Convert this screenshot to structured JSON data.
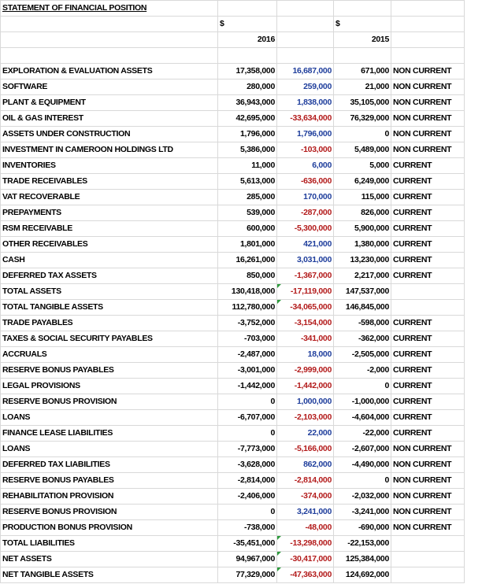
{
  "title": "STATEMENT OF FINANCIAL POSITION",
  "currency_symbol_2016": "$",
  "currency_symbol_2015": "$",
  "year_2016": "2016",
  "year_2015": "2015",
  "rows": [
    {
      "label": "EXPLORATION & EVALUATION ASSETS",
      "v2016": "17,358,000",
      "diff": "16,687,000",
      "diff_sign": "pos",
      "v2015": "671,000",
      "class": "NON CURRENT"
    },
    {
      "label": "SOFTWARE",
      "v2016": "280,000",
      "diff": "259,000",
      "diff_sign": "pos",
      "v2015": "21,000",
      "class": "NON CURRENT"
    },
    {
      "label": "PLANT & EQUIPMENT",
      "v2016": "36,943,000",
      "diff": "1,838,000",
      "diff_sign": "pos",
      "v2015": "35,105,000",
      "class": "NON CURRENT"
    },
    {
      "label": "OIL & GAS INTEREST",
      "v2016": "42,695,000",
      "diff": "-33,634,000",
      "diff_sign": "neg",
      "v2015": "76,329,000",
      "class": "NON CURRENT"
    },
    {
      "label": "ASSETS UNDER CONSTRUCTION",
      "v2016": "1,796,000",
      "diff": "1,796,000",
      "diff_sign": "pos",
      "v2015": "0",
      "class": "NON CURRENT"
    },
    {
      "label": "INVESTMENT IN CAMEROON HOLDINGS LTD",
      "v2016": "5,386,000",
      "diff": "-103,000",
      "diff_sign": "neg",
      "v2015": "5,489,000",
      "class": "NON CURRENT"
    },
    {
      "label": "INVENTORIES",
      "v2016": "11,000",
      "diff": "6,000",
      "diff_sign": "pos",
      "v2015": "5,000",
      "class": "CURRENT"
    },
    {
      "label": "TRADE RECEIVABLES",
      "v2016": "5,613,000",
      "diff": "-636,000",
      "diff_sign": "neg",
      "v2015": "6,249,000",
      "class": "CURRENT"
    },
    {
      "label": "VAT RECOVERABLE",
      "v2016": "285,000",
      "diff": "170,000",
      "diff_sign": "pos",
      "v2015": "115,000",
      "class": "CURRENT"
    },
    {
      "label": "PREPAYMENTS",
      "v2016": "539,000",
      "diff": "-287,000",
      "diff_sign": "neg",
      "v2015": "826,000",
      "class": "CURRENT"
    },
    {
      "label": "RSM RECEIVABLE",
      "v2016": "600,000",
      "diff": "-5,300,000",
      "diff_sign": "neg",
      "v2015": "5,900,000",
      "class": "CURRENT"
    },
    {
      "label": "OTHER RECEIVABLES",
      "v2016": "1,801,000",
      "diff": "421,000",
      "diff_sign": "pos",
      "v2015": "1,380,000",
      "class": "CURRENT"
    },
    {
      "label": "CASH",
      "v2016": "16,261,000",
      "diff": "3,031,000",
      "diff_sign": "pos",
      "v2015": "13,230,000",
      "class": "CURRENT"
    },
    {
      "label": "DEFERRED TAX ASSETS",
      "v2016": "850,000",
      "diff": "-1,367,000",
      "diff_sign": "neg",
      "v2015": "2,217,000",
      "class": "CURRENT"
    },
    {
      "label": "TOTAL ASSETS",
      "v2016": "130,418,000",
      "diff": "-17,119,000",
      "diff_sign": "neg",
      "v2015": "147,537,000",
      "class": "",
      "mark": true
    },
    {
      "label": "TOTAL TANGIBLE ASSETS",
      "v2016": "112,780,000",
      "diff": "-34,065,000",
      "diff_sign": "neg",
      "v2015": "146,845,000",
      "class": "",
      "mark": true
    },
    {
      "label": "TRADE PAYABLES",
      "v2016": "-3,752,000",
      "diff": "-3,154,000",
      "diff_sign": "neg",
      "v2015": "-598,000",
      "class": "CURRENT"
    },
    {
      "label": "TAXES & SOCIAL SECURITY PAYABLES",
      "v2016": "-703,000",
      "diff": "-341,000",
      "diff_sign": "neg",
      "v2015": "-362,000",
      "class": "CURRENT"
    },
    {
      "label": "ACCRUALS",
      "v2016": "-2,487,000",
      "diff": "18,000",
      "diff_sign": "pos",
      "v2015": "-2,505,000",
      "class": "CURRENT"
    },
    {
      "label": "RESERVE BONUS PAYABLES",
      "v2016": "-3,001,000",
      "diff": "-2,999,000",
      "diff_sign": "neg",
      "v2015": "-2,000",
      "class": "CURRENT"
    },
    {
      "label": "LEGAL PROVISIONS",
      "v2016": "-1,442,000",
      "diff": "-1,442,000",
      "diff_sign": "neg",
      "v2015": "0",
      "class": "CURRENT"
    },
    {
      "label": "RESERVE BONUS PROVISION",
      "v2016": "0",
      "diff": "1,000,000",
      "diff_sign": "pos",
      "v2015": "-1,000,000",
      "class": "CURRENT"
    },
    {
      "label": "LOANS",
      "v2016": "-6,707,000",
      "diff": "-2,103,000",
      "diff_sign": "neg",
      "v2015": "-4,604,000",
      "class": "CURRENT"
    },
    {
      "label": "FINANCE LEASE LIABILITIES",
      "v2016": "0",
      "diff": "22,000",
      "diff_sign": "pos",
      "v2015": "-22,000",
      "class": "CURRENT"
    },
    {
      "label": "LOANS",
      "v2016": "-7,773,000",
      "diff": "-5,166,000",
      "diff_sign": "neg",
      "v2015": "-2,607,000",
      "class": "NON CURRENT"
    },
    {
      "label": "DEFERRED TAX LIABILITIES",
      "v2016": "-3,628,000",
      "diff": "862,000",
      "diff_sign": "pos",
      "v2015": "-4,490,000",
      "class": "NON CURRENT"
    },
    {
      "label": "RESERVE BONUS PAYABLES",
      "v2016": "-2,814,000",
      "diff": "-2,814,000",
      "diff_sign": "neg",
      "v2015": "0",
      "class": "NON CURRENT"
    },
    {
      "label": "REHABILITATION PROVISION",
      "v2016": "-2,406,000",
      "diff": "-374,000",
      "diff_sign": "neg",
      "v2015": "-2,032,000",
      "class": "NON CURRENT"
    },
    {
      "label": "RESERVE BONUS PROVISION",
      "v2016": "0",
      "diff": "3,241,000",
      "diff_sign": "pos",
      "v2015": "-3,241,000",
      "class": "NON CURRENT"
    },
    {
      "label": "PRODUCTION BONUS PROVISION",
      "v2016": "-738,000",
      "diff": "-48,000",
      "diff_sign": "neg",
      "v2015": "-690,000",
      "class": "NON CURRENT"
    },
    {
      "label": "TOTAL LIABILITIES",
      "v2016": "-35,451,000",
      "diff": "-13,298,000",
      "diff_sign": "neg",
      "v2015": "-22,153,000",
      "class": "",
      "mark": true
    },
    {
      "label": "NET ASSETS",
      "v2016": "94,967,000",
      "diff": "-30,417,000",
      "diff_sign": "neg",
      "v2015": "125,384,000",
      "class": "",
      "mark": true
    },
    {
      "label": "NET TANGIBLE ASSETS",
      "v2016": "77,329,000",
      "diff": "-47,363,000",
      "diff_sign": "neg",
      "v2015": "124,692,000",
      "class": "",
      "mark": true
    }
  ],
  "colors": {
    "gridline": "#d9d9d9",
    "positive_change": "#1f3e9c",
    "negative_change": "#b31b1b",
    "comment_marker": "#2e9b3d"
  }
}
